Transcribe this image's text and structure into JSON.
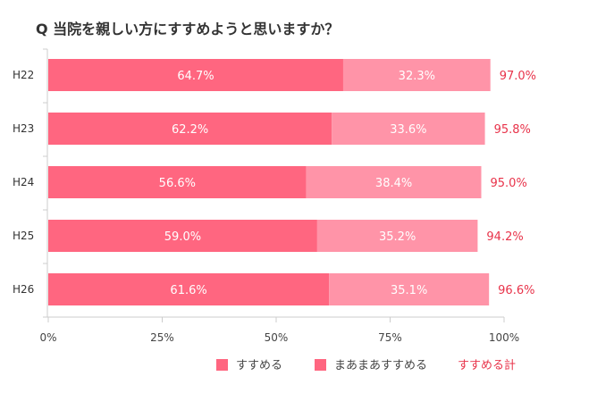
{
  "chart_data": {
    "type": "bar",
    "stacked": true,
    "orientation": "horizontal",
    "title": "Q 当院を親しい方にすすめようと思いますか？",
    "categories": [
      "H22",
      "H23",
      "H24",
      "H25",
      "H26"
    ],
    "series": [
      {
        "name": "すすめる",
        "values": [
          64.7,
          62.2,
          56.6,
          59.0,
          61.6
        ],
        "color": "#ff6680"
      },
      {
        "name": "まあまあすすめる",
        "values": [
          32.3,
          33.6,
          38.4,
          35.2,
          35.1
        ],
        "color": "#ff94a8"
      }
    ],
    "totals": {
      "name": "すすめる計",
      "values": [
        97.0,
        95.8,
        95.0,
        94.2,
        96.6
      ],
      "color": "#e8334a"
    },
    "xlim": [
      0,
      100
    ],
    "xticks": [
      "0%",
      "25%",
      "50%",
      "75%",
      "100%"
    ],
    "grid": false,
    "legend": "bottom"
  }
}
